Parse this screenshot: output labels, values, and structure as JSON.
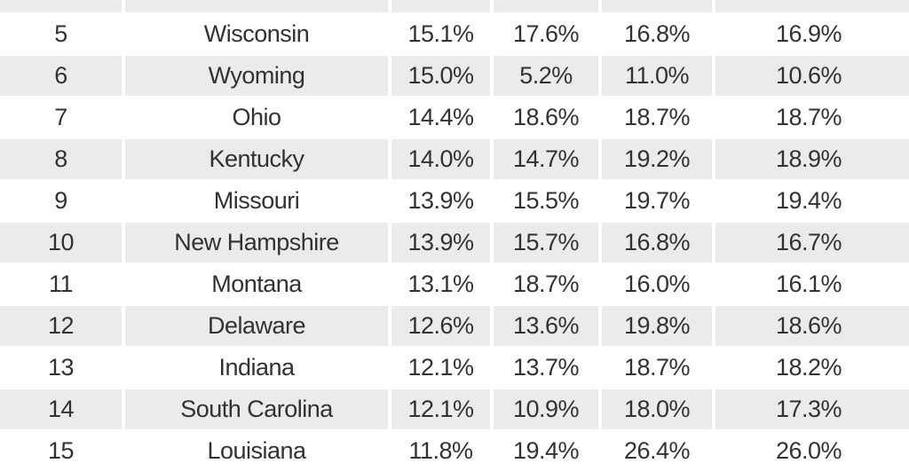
{
  "colors": {
    "page_background": "#ffffff",
    "row_stripe": "#ebebeb",
    "text": "#323232"
  },
  "chart_data": {
    "type": "table",
    "rows": [
      [
        "5",
        "Wisconsin",
        "15.1%",
        "17.6%",
        "16.8%",
        "16.9%"
      ],
      [
        "6",
        "Wyoming",
        "15.0%",
        "5.2%",
        "11.0%",
        "10.6%"
      ],
      [
        "7",
        "Ohio",
        "14.4%",
        "18.6%",
        "18.7%",
        "18.7%"
      ],
      [
        "8",
        "Kentucky",
        "14.0%",
        "14.7%",
        "19.2%",
        "18.9%"
      ],
      [
        "9",
        "Missouri",
        "13.9%",
        "15.5%",
        "19.7%",
        "19.4%"
      ],
      [
        "10",
        "New Hampshire",
        "13.9%",
        "15.7%",
        "16.8%",
        "16.7%"
      ],
      [
        "11",
        "Montana",
        "13.1%",
        "18.7%",
        "16.0%",
        "16.1%"
      ],
      [
        "12",
        "Delaware",
        "12.6%",
        "13.6%",
        "19.8%",
        "18.6%"
      ],
      [
        "13",
        "Indiana",
        "12.1%",
        "13.7%",
        "18.7%",
        "18.2%"
      ],
      [
        "14",
        "South Carolina",
        "12.1%",
        "10.9%",
        "18.0%",
        "17.3%"
      ],
      [
        "15",
        "Louisiana",
        "11.8%",
        "19.4%",
        "26.4%",
        "26.0%"
      ]
    ]
  }
}
